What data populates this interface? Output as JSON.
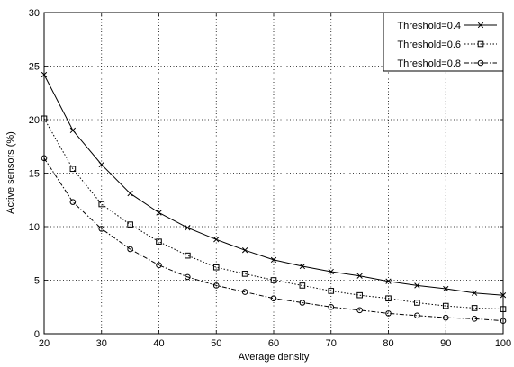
{
  "chart_data": {
    "type": "line",
    "xlabel": "Average density",
    "ylabel": "Active sensors (%)",
    "xlim": [
      20,
      100
    ],
    "ylim": [
      0,
      30
    ],
    "xticks": [
      20,
      30,
      40,
      50,
      60,
      70,
      80,
      90,
      100
    ],
    "yticks": [
      0,
      5,
      10,
      15,
      20,
      25,
      30
    ],
    "grid": true,
    "legend_position": "top-right",
    "x": [
      20,
      25,
      30,
      35,
      40,
      45,
      50,
      55,
      60,
      65,
      70,
      75,
      80,
      85,
      90,
      95,
      100
    ],
    "series": [
      {
        "name": "Threshold=0.4",
        "marker": "x",
        "line_style": "solid",
        "values": [
          24.2,
          19.0,
          15.8,
          13.1,
          11.3,
          9.9,
          8.8,
          7.8,
          6.9,
          6.3,
          5.8,
          5.4,
          4.9,
          4.5,
          4.2,
          3.8,
          3.6
        ]
      },
      {
        "name": "Threshold=0.6",
        "marker": "square",
        "line_style": "dotted",
        "values": [
          20.1,
          15.4,
          12.1,
          10.2,
          8.6,
          7.3,
          6.2,
          5.6,
          5.0,
          4.5,
          4.0,
          3.6,
          3.3,
          2.9,
          2.6,
          2.4,
          2.3
        ]
      },
      {
        "name": "Threshold=0.8",
        "marker": "circle",
        "line_style": "dashdot",
        "values": [
          16.4,
          12.3,
          9.8,
          7.9,
          6.4,
          5.3,
          4.5,
          3.9,
          3.3,
          2.9,
          2.5,
          2.2,
          1.9,
          1.7,
          1.5,
          1.4,
          1.2
        ]
      }
    ]
  }
}
